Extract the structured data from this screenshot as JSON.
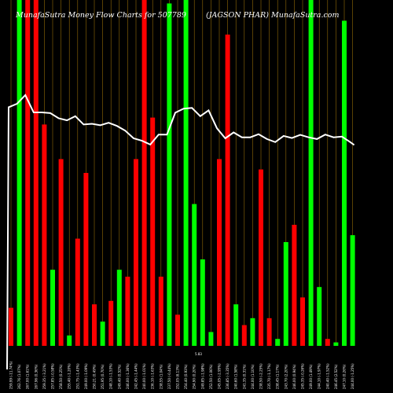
{
  "chart_data": {
    "type": "bar",
    "title_left": "MunafaSutra  Money Flow  Charts for 507789",
    "title_right": "(JAGSON  PHAR) MunafaSutra.com",
    "mid_label": "5.83",
    "colors": {
      "up": "#00ff00",
      "down": "#ff0000",
      "line": "#ffffff",
      "grid": "#b8860b",
      "background": "#000000"
    },
    "ylim": [
      0,
      100
    ],
    "categories": [
      "259.99 (-11.74%)",
      "262.76 (1.07%)",
      "267.00 (1.61%)",
      "267.96 (0.36%)",
      "259.35 (-3.21%)",
      "257.85 (-0.58%)",
      "258.50 (0.25%)",
      "255.40 (-1.20%)",
      "251.75 (-1.43%)",
      "249.00 (-1.09%)",
      "250.21 (0.49%)",
      "251.95 (0.70%)",
      "248.10 (-1.53%)",
      "249.40 (0.52%)",
      "246.00 (-1.36%)",
      "242.45 (-1.44%)",
      "240.00 (-1.01%)",
      "236.10 (-1.63%)",
      "238.55 (1.04%)",
      "237.50 (-0.44%)",
      "252.05 (6.13%)",
      "254.40 (0.93%)",
      "254.90 (0.20%)",
      "249.85 (-1.98%)",
      "252.50 (1.06%)",
      "245.05 (-2.95%)",
      "236.85 (-3.35%)",
      "240.60 (1.58%)",
      "241.35 (0.31%)",
      "244.00 (1.10%)",
      "238.50 (-2.25%)",
      "235.70 (-1.17%)",
      "238.45 (1.17%)",
      "243.70 (2.20%)",
      "246.00 (0.94%)",
      "245.35 (-0.26%)",
      "249.00 (1.49%)",
      "244.10 (-1.97%)",
      "240.40 (-1.52%)",
      "246.45 (2.52%)",
      "247.10 (0.26%)",
      "244.00 (-1.25%)"
    ],
    "bar_colors": [
      "red",
      "green",
      "red",
      "red",
      "red",
      "green",
      "red",
      "green",
      "red",
      "red",
      "red",
      "green",
      "red",
      "green",
      "red",
      "red",
      "red",
      "red",
      "red",
      "green",
      "red",
      "green",
      "green",
      "green",
      "green",
      "red",
      "red",
      "green",
      "red",
      "green",
      "red",
      "red",
      "green",
      "green",
      "red",
      "red",
      "green",
      "green",
      "red",
      "green",
      "green",
      "green"
    ],
    "values": [
      11,
      100,
      100,
      100,
      64,
      22,
      54,
      3,
      31,
      50,
      12,
      7,
      13,
      22,
      20,
      54,
      100,
      66,
      20,
      99,
      9,
      100,
      41,
      25,
      4,
      54,
      90,
      12,
      6,
      8,
      51,
      8,
      2,
      30,
      35,
      14,
      100,
      17,
      2,
      1,
      94,
      32
    ],
    "line_values": [
      69.0,
      70.0,
      72.5,
      67.5,
      67.5,
      67.3,
      65.8,
      65.2,
      66.4,
      64.0,
      64.2,
      63.8,
      64.5,
      63.6,
      62.2,
      60.0,
      59.3,
      58.2,
      61.1,
      61.1,
      67.4,
      68.6,
      68.8,
      66.4,
      68.1,
      62.9,
      60.0,
      61.7,
      60.3,
      60.3,
      61.2,
      59.8,
      58.9,
      60.7,
      60.1,
      61.0,
      60.3,
      59.8,
      61.1,
      60.3,
      60.5,
      58.9
    ]
  }
}
